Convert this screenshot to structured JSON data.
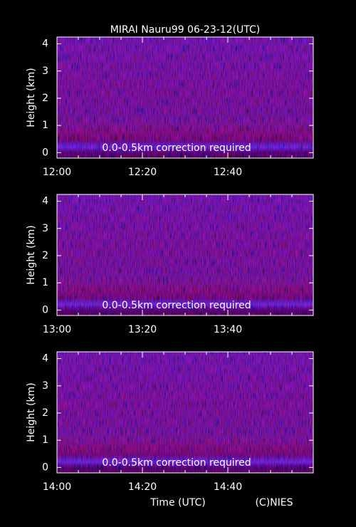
{
  "chart_data": [
    {
      "type": "heatmap",
      "title": "MIRAI Nauru99 06-23-12(UTC)",
      "y_label": "Height (km)",
      "annotation": "0.0-0.5km correction required",
      "xlim": [
        "12:00",
        "13:00"
      ],
      "xticks": [
        "12:00",
        "12:20",
        "12:40"
      ],
      "ylim": [
        -0.2,
        4.25
      ],
      "yticks": [
        0,
        1,
        2,
        3,
        4
      ]
    },
    {
      "type": "heatmap",
      "y_label": "Height (km)",
      "annotation": "0.0-0.5km correction required",
      "xlim": [
        "13:00",
        "14:00"
      ],
      "xticks": [
        "13:00",
        "13:20",
        "13:40"
      ],
      "ylim": [
        -0.2,
        4.25
      ],
      "yticks": [
        0,
        1,
        2,
        3,
        4
      ]
    },
    {
      "type": "heatmap",
      "y_label": "Height (km)",
      "annotation": "0.0-0.5km correction required",
      "xlim": [
        "14:00",
        "15:00"
      ],
      "xticks": [
        "14:00",
        "14:20",
        "14:40"
      ],
      "ylim": [
        -0.2,
        4.25
      ],
      "yticks": [
        0,
        1,
        2,
        3,
        4
      ],
      "x_label": "Time (UTC)",
      "credit": "(C)NIES"
    }
  ]
}
